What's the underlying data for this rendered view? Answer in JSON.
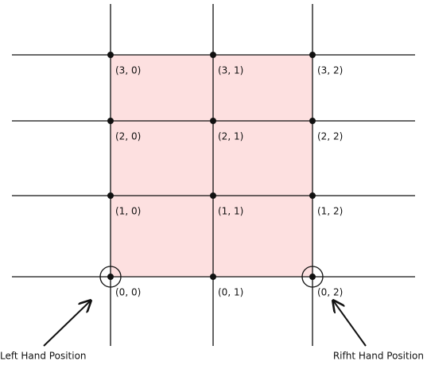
{
  "nodes": [
    {
      "label": "(3, 0)"
    },
    {
      "label": "(3, 1)"
    },
    {
      "label": "(3, 2)"
    },
    {
      "label": "(2, 0)"
    },
    {
      "label": "(2, 1)"
    },
    {
      "label": "(2, 2)"
    },
    {
      "label": "(1, 0)"
    },
    {
      "label": "(1, 1)"
    },
    {
      "label": "(1, 2)"
    },
    {
      "label": "(0, 0)"
    },
    {
      "label": "(0, 1)"
    },
    {
      "label": "(0, 2)"
    }
  ],
  "annotations": {
    "left": "Left Hand Position",
    "right": "Rifht Hand Position"
  }
}
